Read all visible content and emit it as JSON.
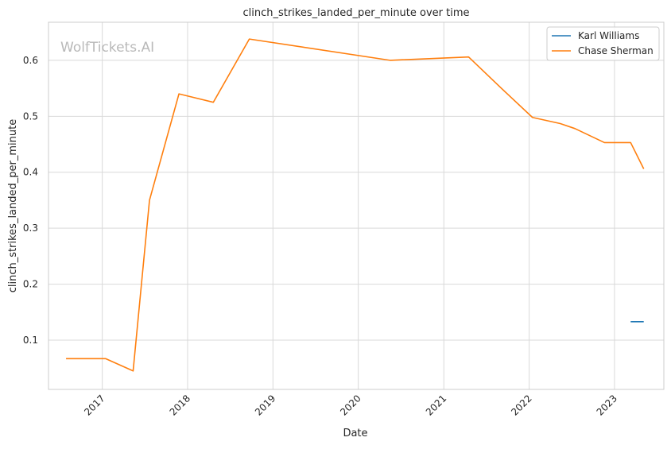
{
  "chart_data": {
    "type": "line",
    "title": "clinch_strikes_landed_per_minute over time",
    "xlabel": "Date",
    "ylabel": "clinch_strikes_landed_per_minute",
    "watermark": "WolfTickets.AI",
    "xlim": [
      "2016-05-16",
      "2023-07-31"
    ],
    "ylim": [
      0.012,
      0.668
    ],
    "x_ticks": [
      "2017-01-01",
      "2018-01-01",
      "2019-01-01",
      "2020-01-01",
      "2021-01-01",
      "2022-01-01",
      "2023-01-01"
    ],
    "x_tick_labels": [
      "2017",
      "2018",
      "2019",
      "2020",
      "2021",
      "2022",
      "2023"
    ],
    "y_ticks": [
      0.1,
      0.2,
      0.3,
      0.4,
      0.5,
      0.6
    ],
    "y_tick_labels": [
      "0.1",
      "0.2",
      "0.3",
      "0.4",
      "0.5",
      "0.6"
    ],
    "grid": true,
    "legend_position": "top-right",
    "series": [
      {
        "name": "Karl Williams",
        "color": "#1f77b4",
        "points": [
          {
            "x": "2023-03-11",
            "y": 0.133
          },
          {
            "x": "2023-05-06",
            "y": 0.133
          }
        ]
      },
      {
        "name": "Chase Sherman",
        "color": "#ff7f0e",
        "points": [
          {
            "x": "2016-07-30",
            "y": 0.067
          },
          {
            "x": "2017-01-15",
            "y": 0.067
          },
          {
            "x": "2017-05-13",
            "y": 0.045
          },
          {
            "x": "2017-07-22",
            "y": 0.35
          },
          {
            "x": "2017-11-25",
            "y": 0.54
          },
          {
            "x": "2018-04-21",
            "y": 0.525
          },
          {
            "x": "2018-09-22",
            "y": 0.638
          },
          {
            "x": "2020-05-16",
            "y": 0.6
          },
          {
            "x": "2021-04-17",
            "y": 0.606
          },
          {
            "x": "2021-09-04",
            "y": 0.55
          },
          {
            "x": "2022-01-15",
            "y": 0.498
          },
          {
            "x": "2022-05-14",
            "y": 0.487
          },
          {
            "x": "2022-07-16",
            "y": 0.478
          },
          {
            "x": "2022-11-19",
            "y": 0.453
          },
          {
            "x": "2023-03-11",
            "y": 0.453
          },
          {
            "x": "2023-05-06",
            "y": 0.406
          }
        ]
      }
    ]
  }
}
